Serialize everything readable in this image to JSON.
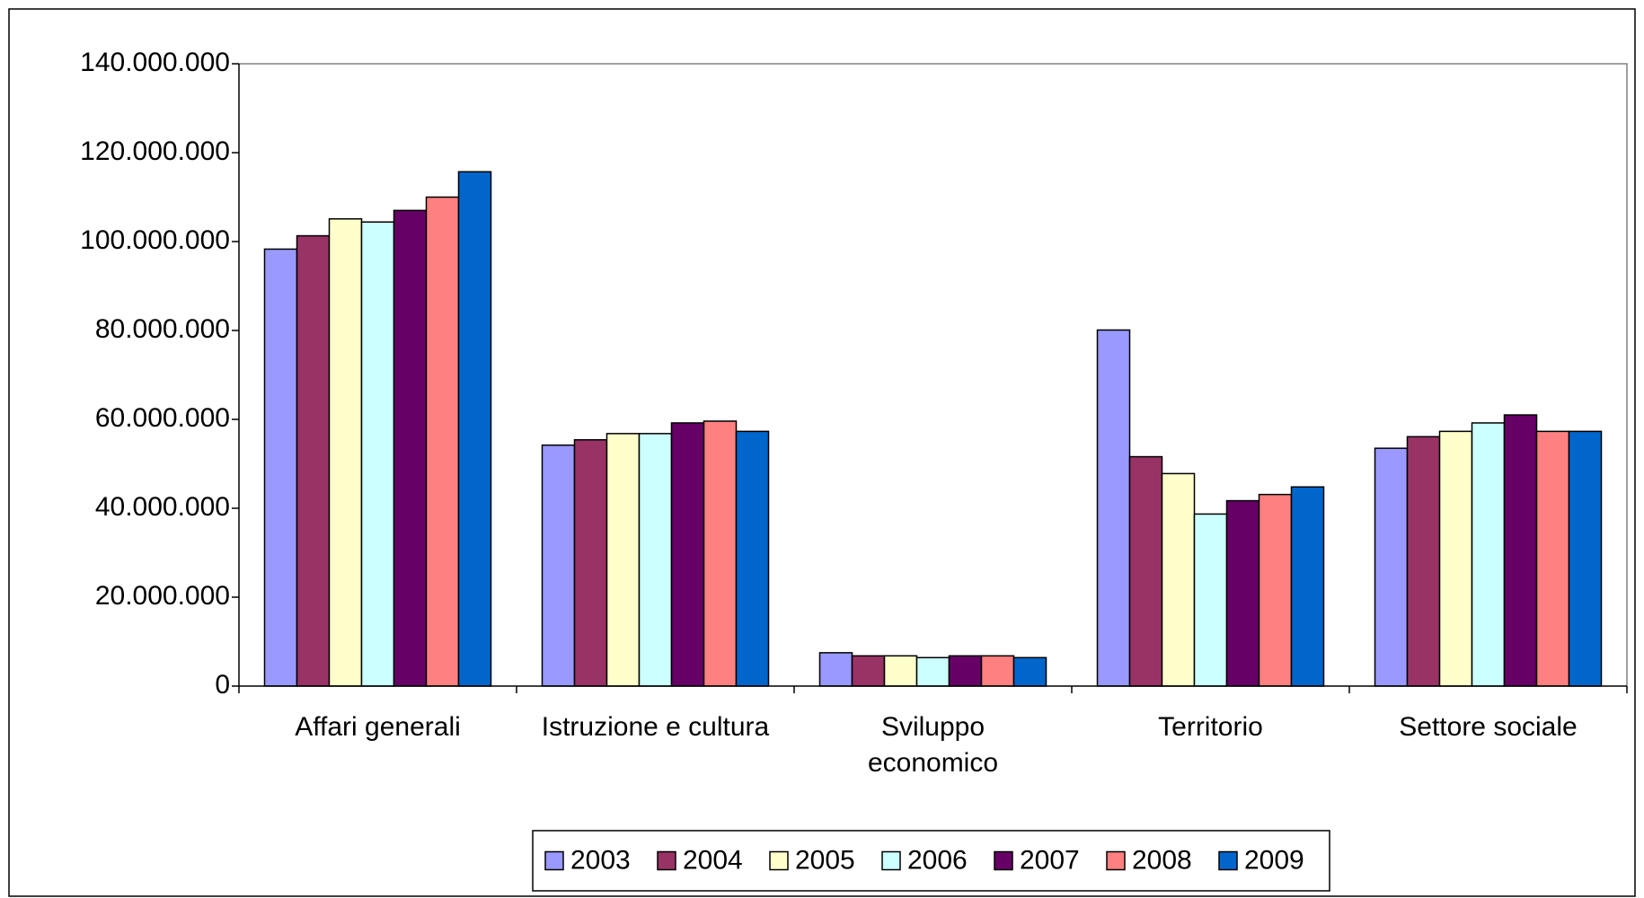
{
  "chart_data": {
    "type": "bar",
    "categories": [
      "Affari generali",
      "Istruzione e cultura",
      "Sviluppo\neconomico",
      "Territorio",
      "Settore sociale"
    ],
    "series": [
      {
        "name": "2003",
        "color": "#9999ff",
        "values": [
          98300000,
          54200000,
          7500000,
          80100000,
          53500000
        ]
      },
      {
        "name": "2004",
        "color": "#993366",
        "values": [
          101300000,
          55400000,
          6800000,
          51600000,
          56100000
        ]
      },
      {
        "name": "2005",
        "color": "#ffffcc",
        "values": [
          105100000,
          56800000,
          6800000,
          47800000,
          57300000
        ]
      },
      {
        "name": "2006",
        "color": "#ccffff",
        "values": [
          104400000,
          56800000,
          6400000,
          38700000,
          59200000
        ]
      },
      {
        "name": "2007",
        "color": "#660066",
        "values": [
          107000000,
          59200000,
          6800000,
          41700000,
          61000000
        ]
      },
      {
        "name": "2008",
        "color": "#ff8080",
        "values": [
          110000000,
          59600000,
          6800000,
          43100000,
          57300000
        ]
      },
      {
        "name": "2009",
        "color": "#0066cc",
        "values": [
          115700000,
          57300000,
          6400000,
          44800000,
          57300000
        ]
      }
    ],
    "ylim": [
      0,
      140000000
    ],
    "yticks": [
      0,
      {
        "value": 20000000,
        "label": "20.000.000"
      },
      {
        "value": 40000000,
        "label": "40.000.000"
      },
      {
        "value": 60000000,
        "label": "60.000.000"
      },
      {
        "value": 80000000,
        "label": "80.000.000"
      },
      {
        "value": 100000000,
        "label": "100.000.000"
      },
      {
        "value": 120000000,
        "label": "120.000.000"
      },
      {
        "value": 140000000,
        "label": "140.000.000"
      }
    ],
    "legend": "bottom"
  }
}
